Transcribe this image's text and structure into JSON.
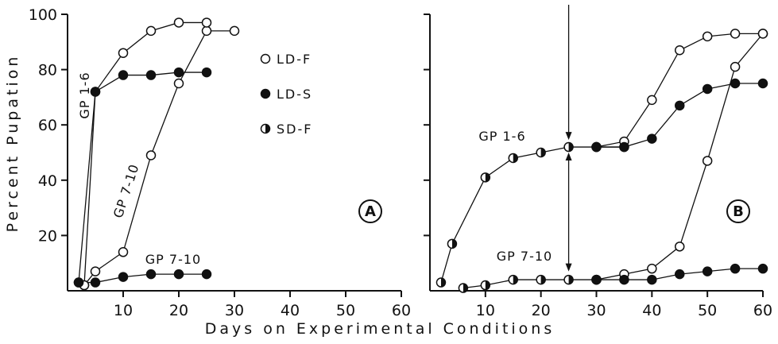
{
  "figure": {
    "xlabel": "Days on Experimental Conditions",
    "ylabel": "Percent Pupation",
    "legend": [
      {
        "label": "LD-F",
        "marker": "open"
      },
      {
        "label": "LD-S",
        "marker": "filled"
      },
      {
        "label": "SD-F",
        "marker": "half"
      }
    ]
  },
  "chart_data": [
    {
      "type": "line",
      "panel_label": "A",
      "xlim": [
        0,
        60
      ],
      "ylim": [
        0,
        100
      ],
      "xticks": [
        10,
        20,
        30,
        40,
        50,
        60
      ],
      "yticks": [
        20,
        40,
        60,
        80,
        100
      ],
      "series": [
        {
          "name": "LD-F",
          "marker": "open",
          "points": [
            [
              3,
              2
            ],
            [
              5,
              7
            ],
            [
              10,
              14
            ],
            [
              15,
              49
            ],
            [
              20,
              75
            ],
            [
              25,
              94
            ],
            [
              30,
              94
            ]
          ]
        },
        {
          "name": "LD-F",
          "marker": "open",
          "points": [
            [
              3,
              2
            ],
            [
              5,
              72
            ],
            [
              10,
              86
            ],
            [
              15,
              94
            ],
            [
              20,
              97
            ],
            [
              25,
              97
            ]
          ]
        },
        {
          "name": "LD-S",
          "marker": "filled",
          "points": [
            [
              2,
              3
            ],
            [
              5,
              72
            ],
            [
              10,
              78
            ],
            [
              15,
              78
            ],
            [
              20,
              79
            ],
            [
              25,
              79
            ]
          ]
        },
        {
          "name": "LD-S",
          "marker": "filled",
          "points": [
            [
              2,
              3
            ],
            [
              5,
              3
            ],
            [
              10,
              5
            ],
            [
              15,
              6
            ],
            [
              20,
              6
            ],
            [
              25,
              6
            ]
          ]
        }
      ],
      "annotations": [
        "GP 1-6",
        "GP 7-10",
        "GP 7-10"
      ]
    },
    {
      "type": "line",
      "panel_label": "B",
      "xlim": [
        0,
        60
      ],
      "ylim": [
        0,
        100
      ],
      "xticks": [
        10,
        20,
        30,
        40,
        50,
        60
      ],
      "yticks": [],
      "series": [
        {
          "name": "SD-F",
          "marker": "half",
          "points": [
            [
              2,
              3
            ],
            [
              4,
              17
            ],
            [
              10,
              41
            ],
            [
              15,
              48
            ],
            [
              20,
              50
            ],
            [
              25,
              52
            ],
            [
              30,
              52
            ],
            [
              35,
              52
            ]
          ]
        },
        {
          "name": "LD-F",
          "marker": "open",
          "points": [
            [
              30,
              52
            ],
            [
              35,
              54
            ],
            [
              40,
              69
            ],
            [
              45,
              87
            ],
            [
              50,
              92
            ],
            [
              55,
              93
            ],
            [
              60,
              93
            ]
          ]
        },
        {
          "name": "LD-S",
          "marker": "filled",
          "points": [
            [
              30,
              52
            ],
            [
              35,
              52
            ],
            [
              40,
              55
            ],
            [
              45,
              67
            ],
            [
              50,
              73
            ],
            [
              55,
              75
            ],
            [
              60,
              75
            ]
          ]
        },
        {
          "name": "SD-F",
          "marker": "half",
          "points": [
            [
              6,
              1
            ],
            [
              10,
              2
            ],
            [
              15,
              4
            ],
            [
              20,
              4
            ],
            [
              25,
              4
            ],
            [
              30,
              4
            ]
          ]
        },
        {
          "name": "LD-F",
          "marker": "open",
          "points": [
            [
              30,
              4
            ],
            [
              35,
              6
            ],
            [
              40,
              8
            ],
            [
              45,
              16
            ],
            [
              50,
              47
            ],
            [
              55,
              81
            ],
            [
              60,
              93
            ]
          ]
        },
        {
          "name": "LD-S",
          "marker": "filled",
          "points": [
            [
              30,
              4
            ],
            [
              35,
              4
            ],
            [
              40,
              4
            ],
            [
              45,
              6
            ],
            [
              50,
              7
            ],
            [
              55,
              8
            ],
            [
              60,
              8
            ]
          ]
        }
      ],
      "annotations": [
        "GP 1-6",
        "GP 7-10"
      ],
      "arrow_at_x": 25
    }
  ]
}
